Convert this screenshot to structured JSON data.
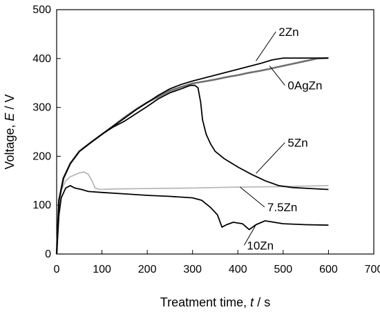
{
  "chart_data": {
    "type": "line",
    "xlabel": {
      "prefix": "Treatment time, ",
      "var": "t",
      "suffix": " / s"
    },
    "ylabel": {
      "prefix": "Voltage, ",
      "var": "E",
      "suffix": " / V"
    },
    "xlim": [
      0,
      700
    ],
    "ylim": [
      0,
      500
    ],
    "xticks": [
      0,
      100,
      200,
      300,
      400,
      500,
      600,
      700
    ],
    "yticks": [
      0,
      100,
      200,
      300,
      400,
      500
    ],
    "grid": false,
    "legend": "none",
    "series": [
      {
        "name": "0AgZn",
        "color": "#6e6e6e",
        "x": [
          0,
          5,
          15,
          30,
          50,
          75,
          100,
          125,
          150,
          175,
          200,
          225,
          250,
          275,
          300,
          325,
          350,
          375,
          400,
          425,
          450,
          475,
          500,
          525,
          550,
          575,
          600
        ],
        "y": [
          0,
          110,
          155,
          185,
          210,
          228,
          245,
          262,
          280,
          296,
          310,
          322,
          334,
          342,
          349,
          353,
          357,
          362,
          366,
          371,
          375,
          380,
          385,
          390,
          395,
          400,
          401
        ]
      },
      {
        "name": "2Zn",
        "color": "#000000",
        "x": [
          0,
          5,
          15,
          30,
          50,
          75,
          100,
          125,
          150,
          175,
          200,
          225,
          250,
          275,
          300,
          325,
          350,
          375,
          400,
          425,
          450,
          475,
          500,
          525,
          550,
          575,
          600
        ],
        "y": [
          0,
          110,
          155,
          185,
          210,
          228,
          245,
          262,
          278,
          295,
          310,
          325,
          338,
          347,
          354,
          360,
          366,
          372,
          378,
          384,
          390,
          397,
          401,
          401,
          401,
          401,
          401
        ]
      },
      {
        "name": "5Zn",
        "color": "#000000",
        "x": [
          0,
          5,
          15,
          30,
          50,
          75,
          100,
          125,
          150,
          175,
          200,
          225,
          250,
          275,
          295,
          305,
          312,
          318,
          322,
          330,
          340,
          350,
          370,
          400,
          430,
          460,
          490,
          520,
          560,
          600
        ],
        "y": [
          0,
          110,
          155,
          185,
          210,
          228,
          245,
          260,
          272,
          287,
          302,
          318,
          330,
          338,
          345,
          345,
          340,
          310,
          275,
          245,
          225,
          210,
          195,
          178,
          163,
          150,
          140,
          136,
          134,
          132
        ]
      },
      {
        "name": "7.5Zn",
        "color": "#b8b8b8",
        "x": [
          0,
          5,
          10,
          20,
          30,
          40,
          50,
          60,
          70,
          78,
          85,
          95,
          120,
          200,
          300,
          400,
          500,
          600
        ],
        "y": [
          0,
          90,
          130,
          150,
          158,
          162,
          166,
          168,
          163,
          150,
          135,
          132,
          133,
          134,
          135,
          137,
          138,
          140
        ]
      },
      {
        "name": "10Zn",
        "color": "#000000",
        "x": [
          0,
          5,
          10,
          20,
          30,
          40,
          55,
          70,
          100,
          150,
          200,
          250,
          300,
          320,
          340,
          355,
          365,
          375,
          390,
          410,
          425,
          440,
          460,
          480,
          500,
          550,
          600
        ],
        "y": [
          0,
          80,
          115,
          135,
          140,
          135,
          132,
          128,
          126,
          123,
          120,
          118,
          115,
          110,
          95,
          80,
          55,
          60,
          65,
          62,
          50,
          60,
          68,
          65,
          62,
          60,
          59
        ]
      }
    ],
    "annotations": [
      {
        "text": "2Zn",
        "label_x": 490,
        "label_y": 455,
        "point_x": 440,
        "point_y": 395
      },
      {
        "text": "0AgZn",
        "label_x": 510,
        "label_y": 345,
        "point_x": 470,
        "point_y": 385
      },
      {
        "text": "5Zn",
        "label_x": 510,
        "label_y": 228,
        "point_x": 440,
        "point_y": 165
      },
      {
        "text": "7.5Zn",
        "label_x": 465,
        "label_y": 96,
        "point_x": 405,
        "point_y": 137
      },
      {
        "text": "10Zn",
        "label_x": 420,
        "label_y": 18,
        "point_x": 440,
        "point_y": 60
      }
    ]
  }
}
